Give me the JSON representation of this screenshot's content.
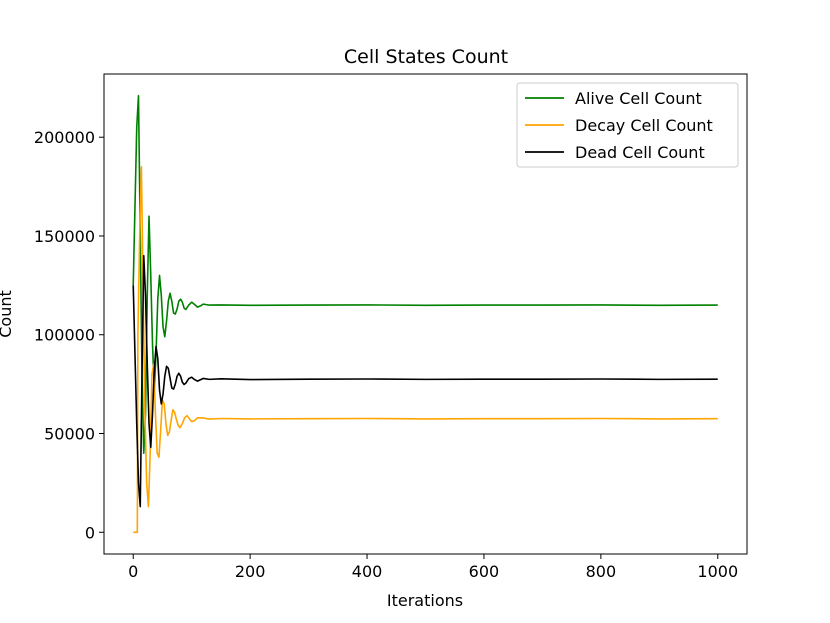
{
  "chart_data": {
    "type": "line",
    "title": "Cell States Count",
    "xlabel": "Iterations",
    "ylabel": "Count",
    "xlim": [
      -50,
      1050
    ],
    "ylim": [
      -11000,
      232000
    ],
    "xticks": [
      0,
      200,
      400,
      600,
      800,
      1000
    ],
    "xtick_labels": [
      "0",
      "200",
      "400",
      "600",
      "800",
      "1000"
    ],
    "yticks": [
      0,
      50000,
      100000,
      150000,
      200000
    ],
    "ytick_labels": [
      "0",
      "50000",
      "100000",
      "150000",
      "200000"
    ],
    "grid": false,
    "legend_position": "upper-right",
    "series": [
      {
        "name": "Alive Cell Count",
        "color": "#008000",
        "points": [
          [
            0,
            125000
          ],
          [
            3,
            165000
          ],
          [
            6,
            205000
          ],
          [
            9,
            221000
          ],
          [
            12,
            150000
          ],
          [
            15,
            80000
          ],
          [
            18,
            40000
          ],
          [
            21,
            60000
          ],
          [
            24,
            120000
          ],
          [
            27,
            160000
          ],
          [
            30,
            130000
          ],
          [
            33,
            95000
          ],
          [
            36,
            72000
          ],
          [
            39,
            90000
          ],
          [
            42,
            118000
          ],
          [
            45,
            130000
          ],
          [
            48,
            120000
          ],
          [
            51,
            104000
          ],
          [
            54,
            99000
          ],
          [
            57,
            107000
          ],
          [
            60,
            117000
          ],
          [
            63,
            121000
          ],
          [
            66,
            117000
          ],
          [
            69,
            111000
          ],
          [
            72,
            110500
          ],
          [
            75,
            113000
          ],
          [
            78,
            117000
          ],
          [
            81,
            118000
          ],
          [
            84,
            116500
          ],
          [
            87,
            113500
          ],
          [
            90,
            112800
          ],
          [
            95,
            115000
          ],
          [
            100,
            116500
          ],
          [
            105,
            115300
          ],
          [
            110,
            114000
          ],
          [
            115,
            114600
          ],
          [
            120,
            115500
          ],
          [
            130,
            115000
          ],
          [
            150,
            115100
          ],
          [
            200,
            114900
          ],
          [
            300,
            115000
          ],
          [
            400,
            115100
          ],
          [
            500,
            114900
          ],
          [
            600,
            115000
          ],
          [
            700,
            115000
          ],
          [
            800,
            115100
          ],
          [
            900,
            114900
          ],
          [
            1000,
            115000
          ]
        ]
      },
      {
        "name": "Decay Cell Count",
        "color": "#FFA500",
        "points": [
          [
            0,
            0
          ],
          [
            7,
            0
          ],
          [
            8,
            100000
          ],
          [
            11,
            150000
          ],
          [
            14,
            185000
          ],
          [
            17,
            120000
          ],
          [
            20,
            60000
          ],
          [
            23,
            25000
          ],
          [
            26,
            13000
          ],
          [
            29,
            40000
          ],
          [
            32,
            80000
          ],
          [
            35,
            85000
          ],
          [
            38,
            60000
          ],
          [
            41,
            40000
          ],
          [
            44,
            38000
          ],
          [
            47,
            52000
          ],
          [
            50,
            67000
          ],
          [
            53,
            65000
          ],
          [
            56,
            55000
          ],
          [
            59,
            49000
          ],
          [
            62,
            51000
          ],
          [
            65,
            57000
          ],
          [
            68,
            62000
          ],
          [
            71,
            60500
          ],
          [
            74,
            57000
          ],
          [
            77,
            54000
          ],
          [
            80,
            53000
          ],
          [
            84,
            55000
          ],
          [
            88,
            58000
          ],
          [
            92,
            59000
          ],
          [
            96,
            57500
          ],
          [
            100,
            56000
          ],
          [
            105,
            56500
          ],
          [
            110,
            58000
          ],
          [
            120,
            57800
          ],
          [
            130,
            57300
          ],
          [
            150,
            57600
          ],
          [
            200,
            57400
          ],
          [
            300,
            57500
          ],
          [
            400,
            57600
          ],
          [
            500,
            57400
          ],
          [
            600,
            57500
          ],
          [
            700,
            57500
          ],
          [
            800,
            57600
          ],
          [
            900,
            57400
          ],
          [
            1000,
            57500
          ]
        ]
      },
      {
        "name": "Dead Cell Count",
        "color": "#000000",
        "points": [
          [
            0,
            125000
          ],
          [
            3,
            90000
          ],
          [
            6,
            55000
          ],
          [
            9,
            25000
          ],
          [
            12,
            13000
          ],
          [
            15,
            80000
          ],
          [
            18,
            140000
          ],
          [
            21,
            120000
          ],
          [
            24,
            85000
          ],
          [
            27,
            55000
          ],
          [
            30,
            43000
          ],
          [
            33,
            60000
          ],
          [
            36,
            82000
          ],
          [
            39,
            94000
          ],
          [
            42,
            88000
          ],
          [
            45,
            72000
          ],
          [
            48,
            65000
          ],
          [
            51,
            70000
          ],
          [
            54,
            79000
          ],
          [
            57,
            84000
          ],
          [
            60,
            83000
          ],
          [
            63,
            78000
          ],
          [
            66,
            73000
          ],
          [
            69,
            72500
          ],
          [
            72,
            75000
          ],
          [
            75,
            79000
          ],
          [
            78,
            80500
          ],
          [
            81,
            79000
          ],
          [
            84,
            76000
          ],
          [
            87,
            74800
          ],
          [
            90,
            75500
          ],
          [
            95,
            77800
          ],
          [
            100,
            78500
          ],
          [
            105,
            77300
          ],
          [
            110,
            76500
          ],
          [
            115,
            77200
          ],
          [
            120,
            77900
          ],
          [
            130,
            77400
          ],
          [
            150,
            77700
          ],
          [
            200,
            77300
          ],
          [
            300,
            77500
          ],
          [
            400,
            77600
          ],
          [
            500,
            77400
          ],
          [
            600,
            77500
          ],
          [
            700,
            77500
          ],
          [
            800,
            77600
          ],
          [
            900,
            77400
          ],
          [
            1000,
            77500
          ]
        ]
      }
    ]
  }
}
